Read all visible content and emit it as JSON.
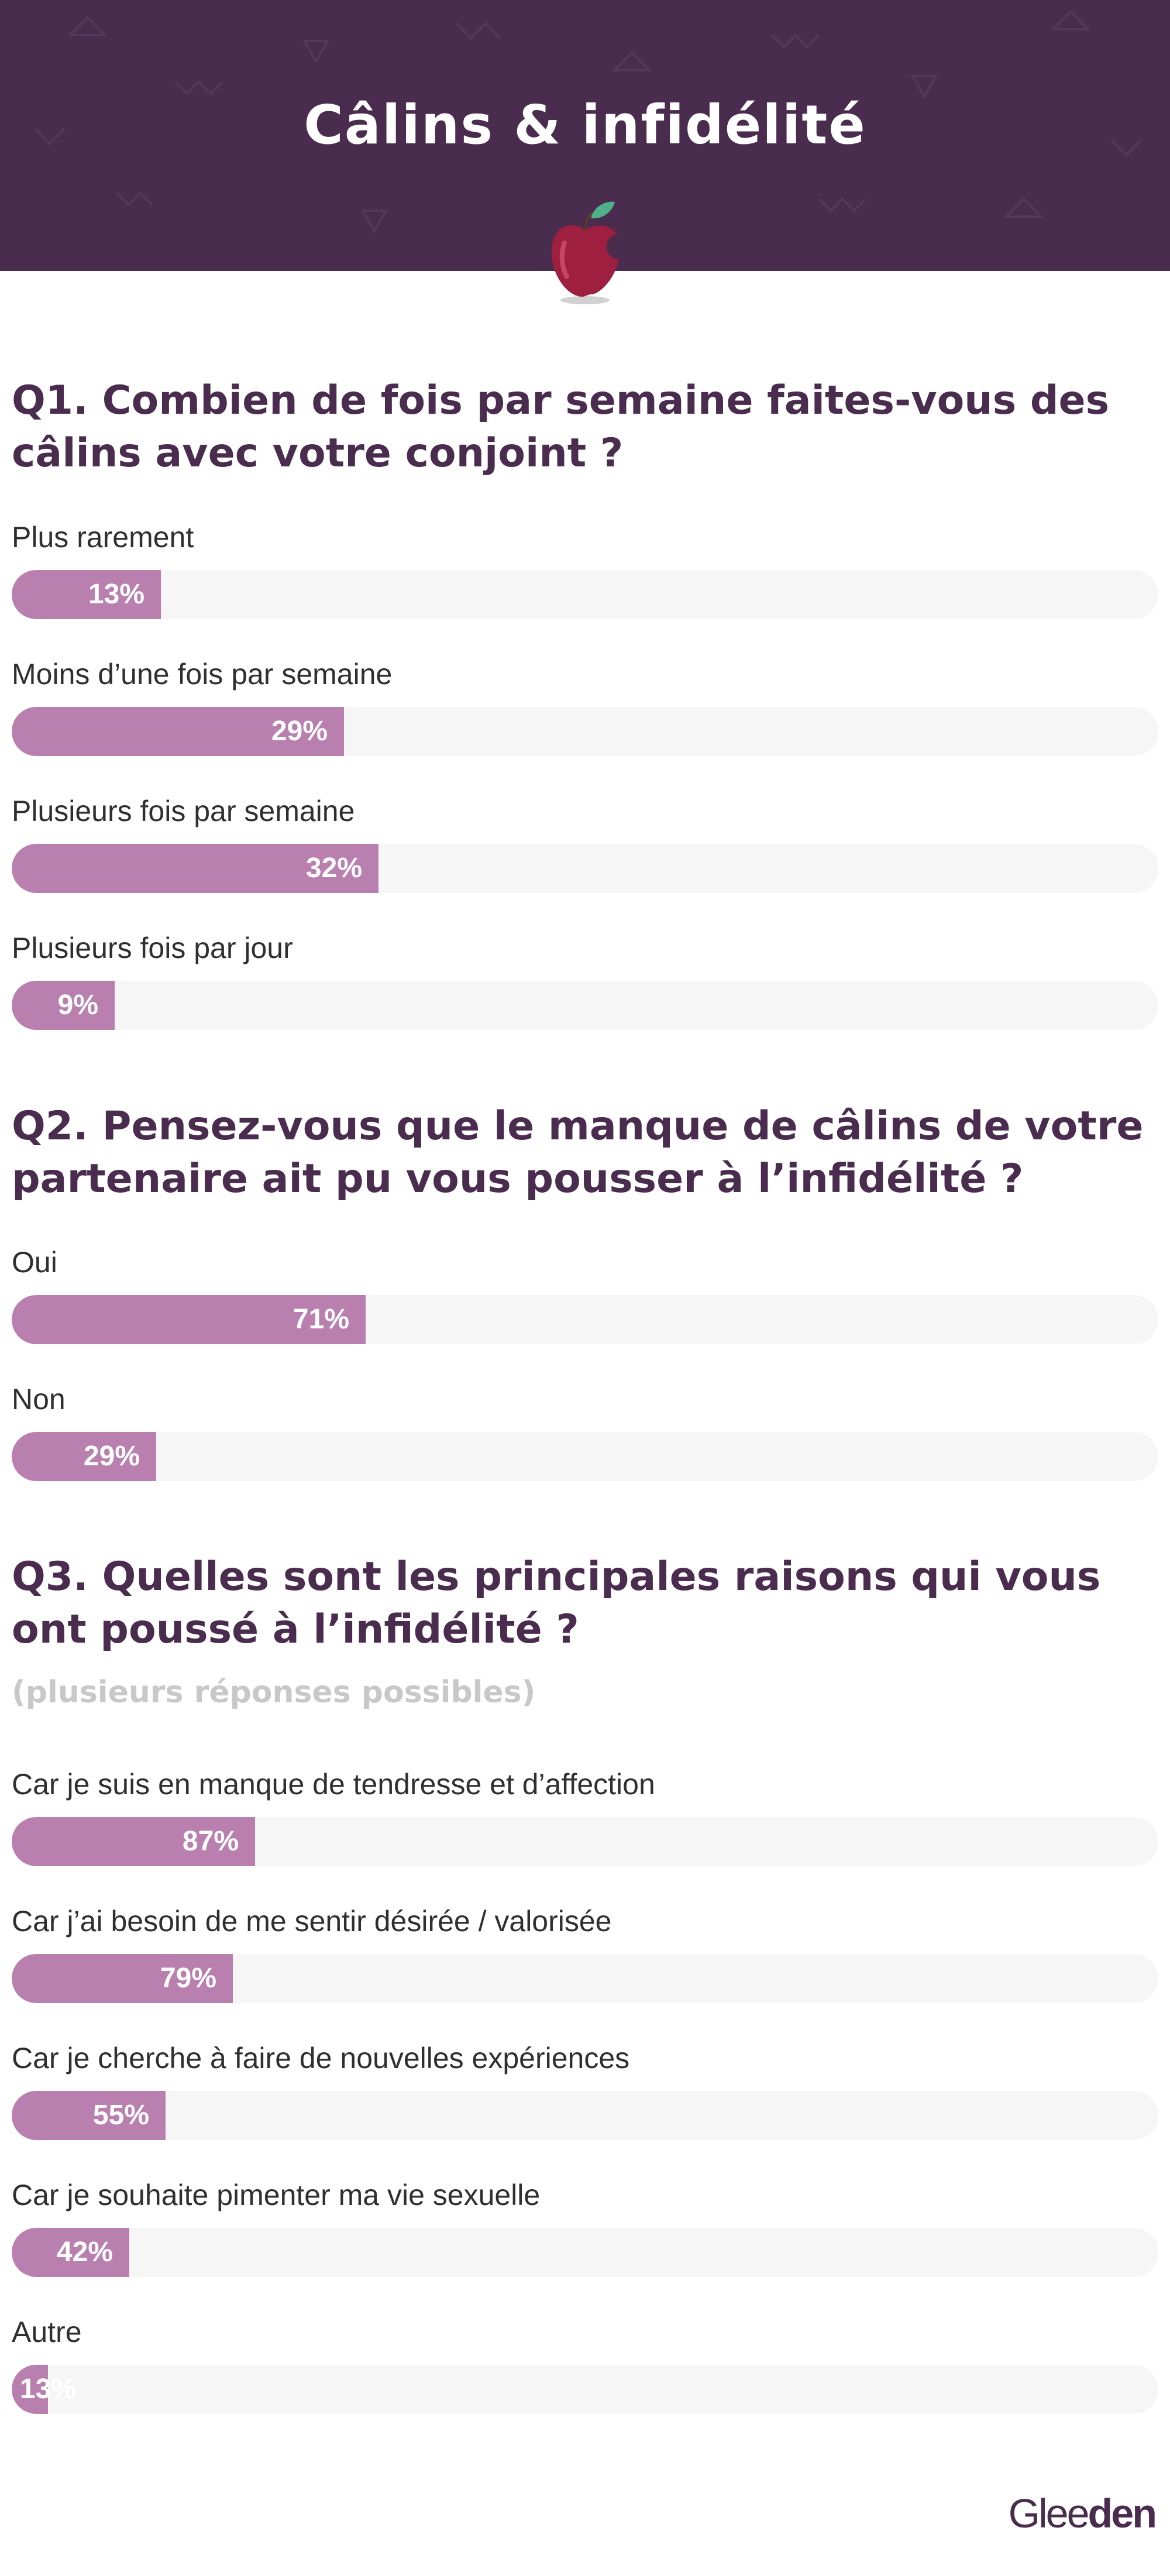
{
  "header": {
    "title": "Câlins & infidélité",
    "icon": "apple-icon",
    "background_color": "#4a2c4f"
  },
  "colors": {
    "bar_fill": "#b97fae",
    "bar_track": "#f6f6f6",
    "question_text": "#4a2c4f",
    "subnote_text": "#c8c8c8"
  },
  "chart_data": [
    {
      "type": "bar",
      "orientation": "horizontal",
      "title": "Q1. Combien de fois par semaine faites-vous des câlins avec votre conjoint ?",
      "categories": [
        "Plus rarement",
        "Moins d’une fois par semaine",
        "Plusieurs fois par semaine",
        "Plusieurs fois par jour"
      ],
      "values": [
        13,
        29,
        32,
        9
      ],
      "value_labels": [
        "13%",
        "29%",
        "32%",
        "9%"
      ],
      "xlim": [
        0,
        100
      ],
      "grid": false
    },
    {
      "type": "bar",
      "orientation": "horizontal",
      "title": "Q2. Pensez-vous que le manque de câlins de votre partenaire ait pu vous pousser à l’infidélité ?",
      "categories": [
        "Oui",
        "Non"
      ],
      "values": [
        71,
        29
      ],
      "value_labels": [
        "71%",
        "29%"
      ],
      "xlim": [
        0,
        230
      ],
      "grid": false
    },
    {
      "type": "bar",
      "orientation": "horizontal",
      "title": "Q3. Quelles sont les principales raisons qui vous ont poussé à l’infidélité ?",
      "subtitle": "(plusieurs réponses possibles)",
      "categories": [
        "Car je suis en manque de tendresse et d’affection",
        "Car j’ai besoin de me sentir désirée / valorisée",
        "Car je cherche à faire de nouvelles expériences",
        "Car je souhaite pimenter ma vie sexuelle",
        "Autre"
      ],
      "values": [
        87,
        79,
        55,
        42,
        13
      ],
      "value_labels": [
        "87%",
        "79%",
        "55%",
        "42%",
        "13%"
      ],
      "xlim": [
        0,
        410
      ],
      "grid": false
    }
  ],
  "footer": {
    "logo_part1": "Glee",
    "logo_part2": "den"
  }
}
